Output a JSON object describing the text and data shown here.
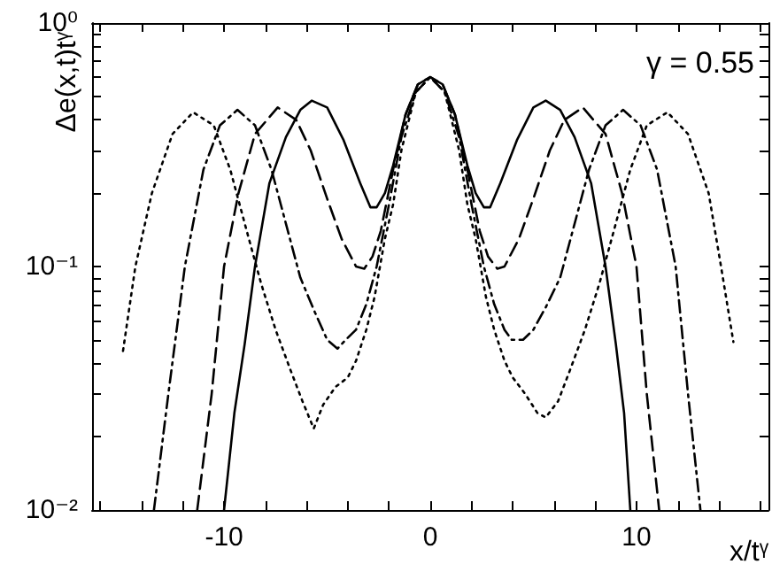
{
  "chart_data": {
    "type": "line",
    "xlabel": "x/tᵞ",
    "ylabel": "Δe(x,t)tᵞ",
    "annotations": [
      "γ = 0.55"
    ],
    "log": "y",
    "grid": false,
    "marker": "none",
    "xlim": [
      -16.4,
      16.4
    ],
    "ylim": [
      0.01,
      1
    ],
    "xticks": [
      {
        "value": -16,
        "label": null
      },
      {
        "value": -14,
        "label": null
      },
      {
        "value": -12,
        "label": null
      },
      -10,
      {
        "value": -8,
        "label": null
      },
      {
        "value": -6,
        "label": null
      },
      {
        "value": -4,
        "label": null
      },
      {
        "value": -2,
        "label": null
      },
      0,
      {
        "value": 2,
        "label": null
      },
      {
        "value": 4,
        "label": null
      },
      {
        "value": 6,
        "label": null
      },
      {
        "value": 8,
        "label": null
      },
      10,
      {
        "value": 12,
        "label": null
      },
      {
        "value": 14,
        "label": null
      },
      {
        "value": 16,
        "label": null
      }
    ],
    "yticks": [
      {
        "value": 0.01,
        "label": "10⁻²"
      },
      {
        "value": 0.02,
        "label": null
      },
      {
        "value": 0.03,
        "label": null
      },
      {
        "value": 0.04,
        "label": null
      },
      {
        "value": 0.05,
        "label": null
      },
      {
        "value": 0.06,
        "label": null
      },
      {
        "value": 0.07,
        "label": null
      },
      {
        "value": 0.08,
        "label": null
      },
      {
        "value": 0.09,
        "label": null
      },
      {
        "value": 0.1,
        "label": "10⁻¹"
      },
      {
        "value": 0.2,
        "label": null
      },
      {
        "value": 0.3,
        "label": null
      },
      {
        "value": 0.4,
        "label": null
      },
      {
        "value": 0.5,
        "label": null
      },
      {
        "value": 0.6,
        "label": null
      },
      {
        "value": 0.7,
        "label": null
      },
      {
        "value": 0.8,
        "label": null
      },
      {
        "value": 0.9,
        "label": null
      },
      {
        "value": 1,
        "label": "10⁰"
      }
    ],
    "series": [
      {
        "color": "#000000",
        "line_style": "solid",
        "x": [
          -10,
          -9.5,
          -9,
          -8.5,
          -7.8,
          -7,
          -6.3,
          -5.75,
          -5,
          -4.2,
          -3.4,
          -2.9,
          -2.6,
          -2.2,
          -1.8,
          -1.2,
          -0.6,
          0,
          0.6,
          1.2,
          1.8,
          2.2,
          2.6,
          2.9,
          3.4,
          4.2,
          5,
          5.6,
          6.3,
          7,
          7.8,
          8.5,
          9,
          9.4,
          9.7
        ],
        "values": [
          0.01,
          0.025,
          0.048,
          0.1,
          0.22,
          0.34,
          0.44,
          0.48,
          0.45,
          0.33,
          0.22,
          0.175,
          0.175,
          0.2,
          0.26,
          0.42,
          0.56,
          0.6,
          0.56,
          0.42,
          0.26,
          0.2,
          0.175,
          0.175,
          0.22,
          0.33,
          0.45,
          0.48,
          0.44,
          0.34,
          0.22,
          0.1,
          0.048,
          0.025,
          0.01
        ]
      },
      {
        "color": "#000000",
        "line_style": "dashed",
        "x": [
          -11.3,
          -10.6,
          -10,
          -9.3,
          -8.5,
          -7.4,
          -6.5,
          -5.8,
          -5,
          -4.3,
          -3.6,
          -3.2,
          -2.8,
          -2.4,
          -1.8,
          -1.2,
          -0.6,
          0,
          0.6,
          1.2,
          1.8,
          2.4,
          2.8,
          3.25,
          3.6,
          4.3,
          5,
          5.8,
          6.5,
          7.4,
          8.5,
          9.3,
          10,
          10.5,
          11.1
        ],
        "values": [
          0.01,
          0.03,
          0.1,
          0.2,
          0.35,
          0.45,
          0.4,
          0.3,
          0.19,
          0.13,
          0.1,
          0.098,
          0.11,
          0.14,
          0.25,
          0.42,
          0.56,
          0.6,
          0.56,
          0.42,
          0.25,
          0.14,
          0.11,
          0.098,
          0.1,
          0.13,
          0.19,
          0.3,
          0.4,
          0.45,
          0.35,
          0.2,
          0.1,
          0.03,
          0.01
        ]
      },
      {
        "color": "#000000",
        "line_style": "dashdot",
        "x": [
          -13.4,
          -12.7,
          -11.9,
          -11,
          -10.2,
          -9.35,
          -8.5,
          -7.7,
          -7,
          -6.3,
          -5.6,
          -5,
          -4.5,
          -4.1,
          -3.6,
          -3.1,
          -2.6,
          -2,
          -1.4,
          -0.7,
          0,
          0.7,
          1.4,
          2,
          2.6,
          3.1,
          3.6,
          3.95,
          4.5,
          5,
          5.6,
          6.3,
          7,
          7.7,
          8.5,
          9.35,
          10.2,
          11,
          11.9,
          12.5,
          13.1
        ],
        "values": [
          0.01,
          0.03,
          0.1,
          0.25,
          0.38,
          0.44,
          0.38,
          0.25,
          0.15,
          0.09,
          0.065,
          0.05,
          0.046,
          0.05,
          0.055,
          0.07,
          0.1,
          0.18,
          0.34,
          0.52,
          0.6,
          0.52,
          0.34,
          0.18,
          0.1,
          0.07,
          0.055,
          0.05,
          0.05,
          0.055,
          0.068,
          0.09,
          0.15,
          0.25,
          0.38,
          0.44,
          0.38,
          0.25,
          0.1,
          0.03,
          0.01
        ]
      },
      {
        "color": "#000000",
        "line_style": "dotted",
        "x": [
          -14.9,
          -14.3,
          -13.5,
          -12.5,
          -11.5,
          -10.5,
          -9.7,
          -8.9,
          -8.2,
          -7.5,
          -6.8,
          -6.2,
          -5.65,
          -5.2,
          -4.6,
          -4,
          -3.6,
          -3.1,
          -2.7,
          -2.2,
          -1.8,
          -1.4,
          -0.7,
          0,
          0.7,
          1.4,
          1.8,
          2.2,
          2.7,
          3.1,
          3.6,
          4,
          4.6,
          5.2,
          5.6,
          6.2,
          6.8,
          7.5,
          8.2,
          8.9,
          9.7,
          10.5,
          11.5,
          12.5,
          13.5,
          14.1,
          14.7
        ],
        "values": [
          0.045,
          0.1,
          0.2,
          0.35,
          0.43,
          0.38,
          0.25,
          0.14,
          0.085,
          0.055,
          0.038,
          0.028,
          0.0216,
          0.027,
          0.032,
          0.035,
          0.041,
          0.055,
          0.075,
          0.13,
          0.18,
          0.3,
          0.52,
          0.6,
          0.52,
          0.3,
          0.18,
          0.13,
          0.075,
          0.055,
          0.041,
          0.035,
          0.03,
          0.025,
          0.024,
          0.028,
          0.038,
          0.055,
          0.085,
          0.14,
          0.25,
          0.38,
          0.43,
          0.35,
          0.2,
          0.1,
          0.049
        ]
      }
    ]
  }
}
